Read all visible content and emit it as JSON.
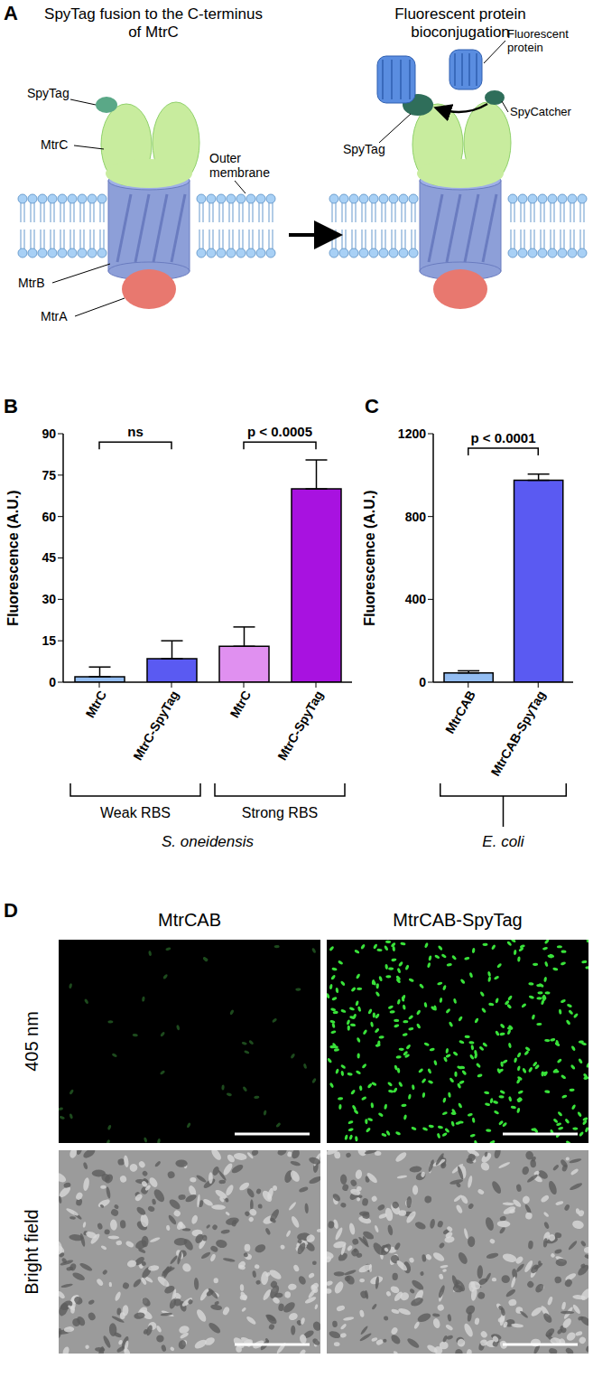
{
  "panel_a": {
    "panel_label": "A",
    "left_title": "SpyTag fusion to the C-terminus of MtrC",
    "right_title": "Fluorescent protein bioconjugation",
    "left_labels": [
      "SpyTag",
      "MtrC",
      "MtrB",
      "MtrA",
      "Outer membrane"
    ],
    "right_labels": [
      "Fluorescent protein",
      "SpyCatcher",
      "SpyTag"
    ]
  },
  "chart_data": [
    {
      "type": "bar",
      "panel_label": "B",
      "y_label": "Fluorescence (A.U.)",
      "categories": [
        "MtrC",
        "MtrC-SpyTag",
        "MtrC",
        "MtrC-SpyTag"
      ],
      "values": [
        2,
        8.5,
        13,
        70
      ],
      "errors": [
        3.5,
        6.5,
        7,
        10.5
      ],
      "colors": [
        "#93bdf2",
        "#5a5af2",
        "#e090f0",
        "#a812e0"
      ],
      "ylim": [
        0,
        90
      ],
      "yticks": [
        0,
        15,
        30,
        45,
        60,
        75,
        90
      ],
      "annotations": [
        {
          "text": "ns",
          "from": 0,
          "to": 1,
          "y": 87
        },
        {
          "text": "p < 0.0005",
          "from": 2,
          "to": 3,
          "y": 87
        }
      ],
      "groups": [
        {
          "label": "Weak RBS",
          "from": 0,
          "to": 1
        },
        {
          "label": "Strong RBS",
          "from": 2,
          "to": 3
        }
      ],
      "group_title": "S. oneidensis"
    },
    {
      "type": "bar",
      "panel_label": "C",
      "y_label": "Fluorescence (A.U.)",
      "categories": [
        "MtrCAB",
        "MtrCAB-SpyTag"
      ],
      "values": [
        45,
        975
      ],
      "errors": [
        10,
        30
      ],
      "colors": [
        "#93bdf2",
        "#5a5af2"
      ],
      "ylim": [
        0,
        1200
      ],
      "yticks": [
        0,
        400,
        800,
        1200
      ],
      "annotations": [
        {
          "text": "p < 0.0001",
          "from": 0,
          "to": 1,
          "y": 1130
        }
      ],
      "groups": [],
      "group_title": "E. coli"
    }
  ],
  "panel_d": {
    "panel_label": "D",
    "columns": [
      "MtrCAB",
      "MtrCAB-SpyTag"
    ],
    "rows": [
      "405 nm",
      "Bright field"
    ]
  }
}
